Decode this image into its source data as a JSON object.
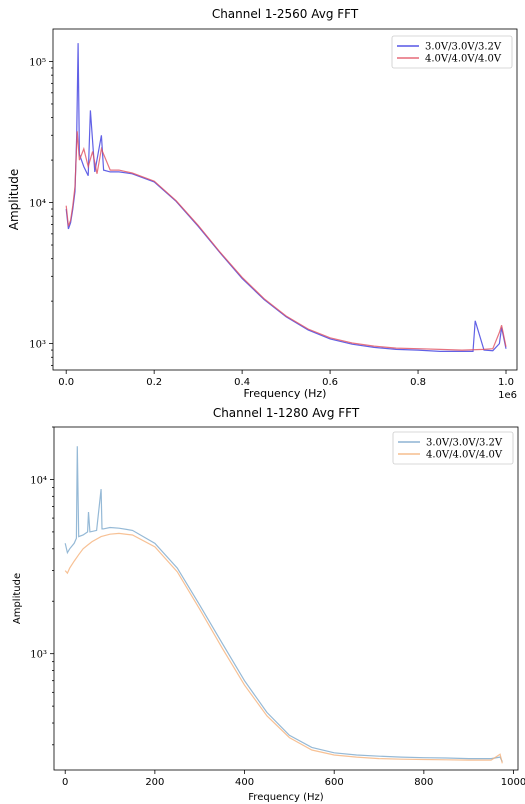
{
  "chart_data": [
    {
      "type": "line",
      "title": "Channel 1-2560 Avg FFT",
      "xlabel": "Frequency (Hz)",
      "ylabel": "Amplitude",
      "x_offset_label": "1e6",
      "xlim": [
        -0.03,
        1.025
      ],
      "ylim": [
        650,
        170000
      ],
      "yscale": "log",
      "x_ticks": [
        0.0,
        0.2,
        0.4,
        0.6,
        0.8,
        1.0
      ],
      "x_tick_labels": [
        "0.0",
        "0.2",
        "0.4",
        "0.6",
        "0.8",
        "1.0"
      ],
      "y_ticks": [
        1000,
        10000,
        100000
      ],
      "y_tick_labels": [
        "10³",
        "10⁴",
        "10⁵"
      ],
      "legend_position": "top-right",
      "series": [
        {
          "name": "3.0V/3.0V/3.2V",
          "color": "#3a3ae0",
          "x": [
            0.0,
            0.005,
            0.01,
            0.015,
            0.02,
            0.024,
            0.027,
            0.03,
            0.04,
            0.05,
            0.055,
            0.065,
            0.08,
            0.085,
            0.1,
            0.12,
            0.15,
            0.2,
            0.25,
            0.3,
            0.35,
            0.4,
            0.45,
            0.5,
            0.55,
            0.6,
            0.65,
            0.7,
            0.75,
            0.8,
            0.85,
            0.9,
            0.925,
            0.93,
            0.95,
            0.97,
            0.985,
            0.99,
            1.0
          ],
          "values": [
            9000,
            6500,
            7200,
            9000,
            12000,
            30000,
            135000,
            22000,
            18000,
            15500,
            45000,
            16500,
            30000,
            17000,
            16500,
            16500,
            16000,
            14000,
            10200,
            6800,
            4400,
            2900,
            2050,
            1550,
            1250,
            1080,
            990,
            940,
            910,
            900,
            880,
            880,
            880,
            1450,
            900,
            890,
            1000,
            1300,
            920
          ]
        },
        {
          "name": "4.0V/4.0V/4.0V",
          "color": "#e05060",
          "x": [
            0.0,
            0.005,
            0.01,
            0.015,
            0.02,
            0.025,
            0.03,
            0.04,
            0.05,
            0.06,
            0.07,
            0.08,
            0.1,
            0.12,
            0.15,
            0.2,
            0.25,
            0.3,
            0.35,
            0.4,
            0.45,
            0.5,
            0.55,
            0.6,
            0.65,
            0.7,
            0.75,
            0.8,
            0.85,
            0.9,
            0.95,
            0.97,
            0.985,
            0.99,
            1.0
          ],
          "values": [
            9500,
            6800,
            7500,
            9500,
            13000,
            32000,
            20000,
            24000,
            18000,
            23000,
            16000,
            24000,
            17000,
            17000,
            16200,
            14200,
            10300,
            6900,
            4450,
            2950,
            2080,
            1570,
            1270,
            1100,
            1010,
            960,
            930,
            920,
            910,
            900,
            910,
            920,
            1200,
            1350,
            950
          ]
        }
      ]
    },
    {
      "type": "line",
      "title": "Channel 1-1280 Avg FFT",
      "xlabel": "Frequency (Hz)",
      "ylabel": "Amplitude",
      "xlim": [
        -25,
        1010
      ],
      "ylim": [
        215,
        20000
      ],
      "yscale": "log",
      "x_ticks": [
        0,
        200,
        400,
        600,
        800,
        1000
      ],
      "x_tick_labels": [
        "0",
        "200",
        "400",
        "600",
        "800",
        "1000"
      ],
      "y_ticks": [
        1000,
        10000
      ],
      "y_tick_labels": [
        "10³",
        "10⁴"
      ],
      "legend_position": "top-right",
      "series": [
        {
          "name": "3.0V/3.0V/3.2V",
          "color": "#7aa7cc",
          "x": [
            0,
            5,
            10,
            20,
            25,
            27,
            30,
            40,
            50,
            52,
            55,
            70,
            80,
            82,
            85,
            100,
            120,
            150,
            200,
            250,
            300,
            350,
            400,
            450,
            500,
            550,
            600,
            650,
            700,
            750,
            800,
            850,
            900,
            950,
            970,
            975
          ],
          "values": [
            4300,
            3800,
            4000,
            4300,
            4600,
            15500,
            4700,
            4800,
            5000,
            6500,
            5000,
            5100,
            8800,
            5200,
            5200,
            5300,
            5250,
            5100,
            4300,
            3100,
            1900,
            1150,
            700,
            460,
            340,
            290,
            270,
            262,
            258,
            255,
            253,
            252,
            250,
            250,
            255,
            240
          ]
        },
        {
          "name": "4.0V/4.0V/4.0V",
          "color": "#f5b27a",
          "x": [
            0,
            5,
            10,
            20,
            30,
            40,
            50,
            60,
            80,
            100,
            120,
            150,
            200,
            250,
            300,
            350,
            400,
            450,
            500,
            550,
            600,
            650,
            700,
            750,
            800,
            850,
            900,
            950,
            970,
            975
          ],
          "values": [
            3000,
            2900,
            3100,
            3400,
            3700,
            4000,
            4200,
            4400,
            4700,
            4850,
            4900,
            4800,
            4100,
            2950,
            1800,
            1080,
            660,
            440,
            330,
            280,
            262,
            255,
            250,
            248,
            247,
            246,
            245,
            245,
            265,
            235
          ]
        }
      ]
    }
  ]
}
